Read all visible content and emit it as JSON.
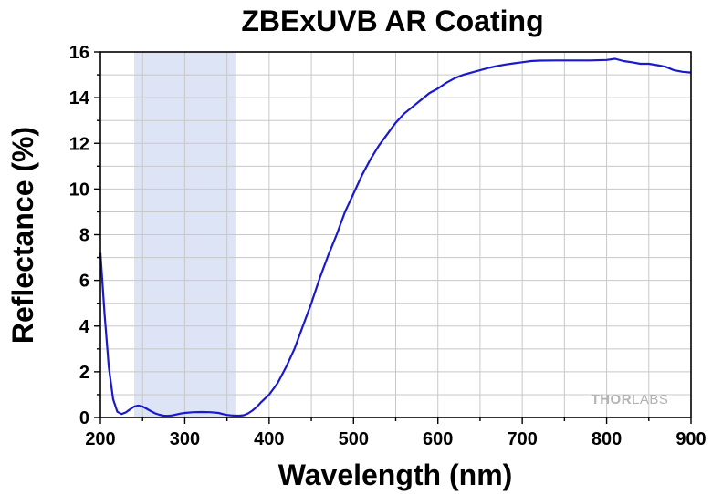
{
  "chart_data": {
    "type": "line",
    "title": "ZBExUVB AR Coating",
    "xlabel": "Wavelength (nm)",
    "ylabel": "Reflectance (%)",
    "xlim": [
      200,
      900
    ],
    "ylim": [
      0,
      16
    ],
    "xticks": [
      200,
      300,
      400,
      500,
      600,
      700,
      800,
      900
    ],
    "yticks": [
      0,
      2,
      4,
      6,
      8,
      10,
      12,
      14,
      16
    ],
    "grid": true,
    "shaded_band": [
      240,
      360
    ],
    "series": [
      {
        "color": "#1a1acc",
        "points": [
          [
            200,
            7.2
          ],
          [
            205,
            4.5
          ],
          [
            210,
            2.2
          ],
          [
            215,
            0.8
          ],
          [
            220,
            0.25
          ],
          [
            225,
            0.15
          ],
          [
            230,
            0.22
          ],
          [
            235,
            0.35
          ],
          [
            240,
            0.48
          ],
          [
            245,
            0.52
          ],
          [
            250,
            0.48
          ],
          [
            255,
            0.38
          ],
          [
            260,
            0.27
          ],
          [
            265,
            0.18
          ],
          [
            270,
            0.12
          ],
          [
            275,
            0.08
          ],
          [
            280,
            0.07
          ],
          [
            285,
            0.09
          ],
          [
            290,
            0.13
          ],
          [
            295,
            0.17
          ],
          [
            300,
            0.2
          ],
          [
            310,
            0.23
          ],
          [
            320,
            0.24
          ],
          [
            330,
            0.23
          ],
          [
            340,
            0.2
          ],
          [
            345,
            0.15
          ],
          [
            350,
            0.11
          ],
          [
            355,
            0.09
          ],
          [
            360,
            0.08
          ],
          [
            365,
            0.08
          ],
          [
            370,
            0.1
          ],
          [
            375,
            0.18
          ],
          [
            380,
            0.3
          ],
          [
            385,
            0.45
          ],
          [
            390,
            0.65
          ],
          [
            400,
            1.0
          ],
          [
            410,
            1.5
          ],
          [
            420,
            2.2
          ],
          [
            430,
            3.0
          ],
          [
            440,
            4.0
          ],
          [
            450,
            5.0
          ],
          [
            460,
            6.1
          ],
          [
            470,
            7.1
          ],
          [
            480,
            8.0
          ],
          [
            490,
            9.0
          ],
          [
            500,
            9.8
          ],
          [
            510,
            10.6
          ],
          [
            520,
            11.3
          ],
          [
            530,
            11.9
          ],
          [
            540,
            12.4
          ],
          [
            550,
            12.9
          ],
          [
            560,
            13.3
          ],
          [
            570,
            13.6
          ],
          [
            580,
            13.9
          ],
          [
            590,
            14.2
          ],
          [
            600,
            14.4
          ],
          [
            610,
            14.65
          ],
          [
            620,
            14.85
          ],
          [
            630,
            15.0
          ],
          [
            640,
            15.1
          ],
          [
            650,
            15.2
          ],
          [
            660,
            15.3
          ],
          [
            670,
            15.38
          ],
          [
            680,
            15.45
          ],
          [
            690,
            15.5
          ],
          [
            700,
            15.55
          ],
          [
            710,
            15.6
          ],
          [
            720,
            15.62
          ],
          [
            740,
            15.63
          ],
          [
            760,
            15.63
          ],
          [
            780,
            15.63
          ],
          [
            800,
            15.65
          ],
          [
            810,
            15.7
          ],
          [
            820,
            15.6
          ],
          [
            830,
            15.55
          ],
          [
            840,
            15.48
          ],
          [
            850,
            15.48
          ],
          [
            860,
            15.42
          ],
          [
            870,
            15.35
          ],
          [
            880,
            15.2
          ],
          [
            890,
            15.13
          ],
          [
            900,
            15.1
          ]
        ]
      }
    ]
  },
  "brand": {
    "part1": "THOR",
    "part2": "LABS"
  },
  "colors": {
    "line": "#1a1acc",
    "band": "#dce4f5",
    "grid": "#c8c8c8",
    "axis": "#000000"
  }
}
